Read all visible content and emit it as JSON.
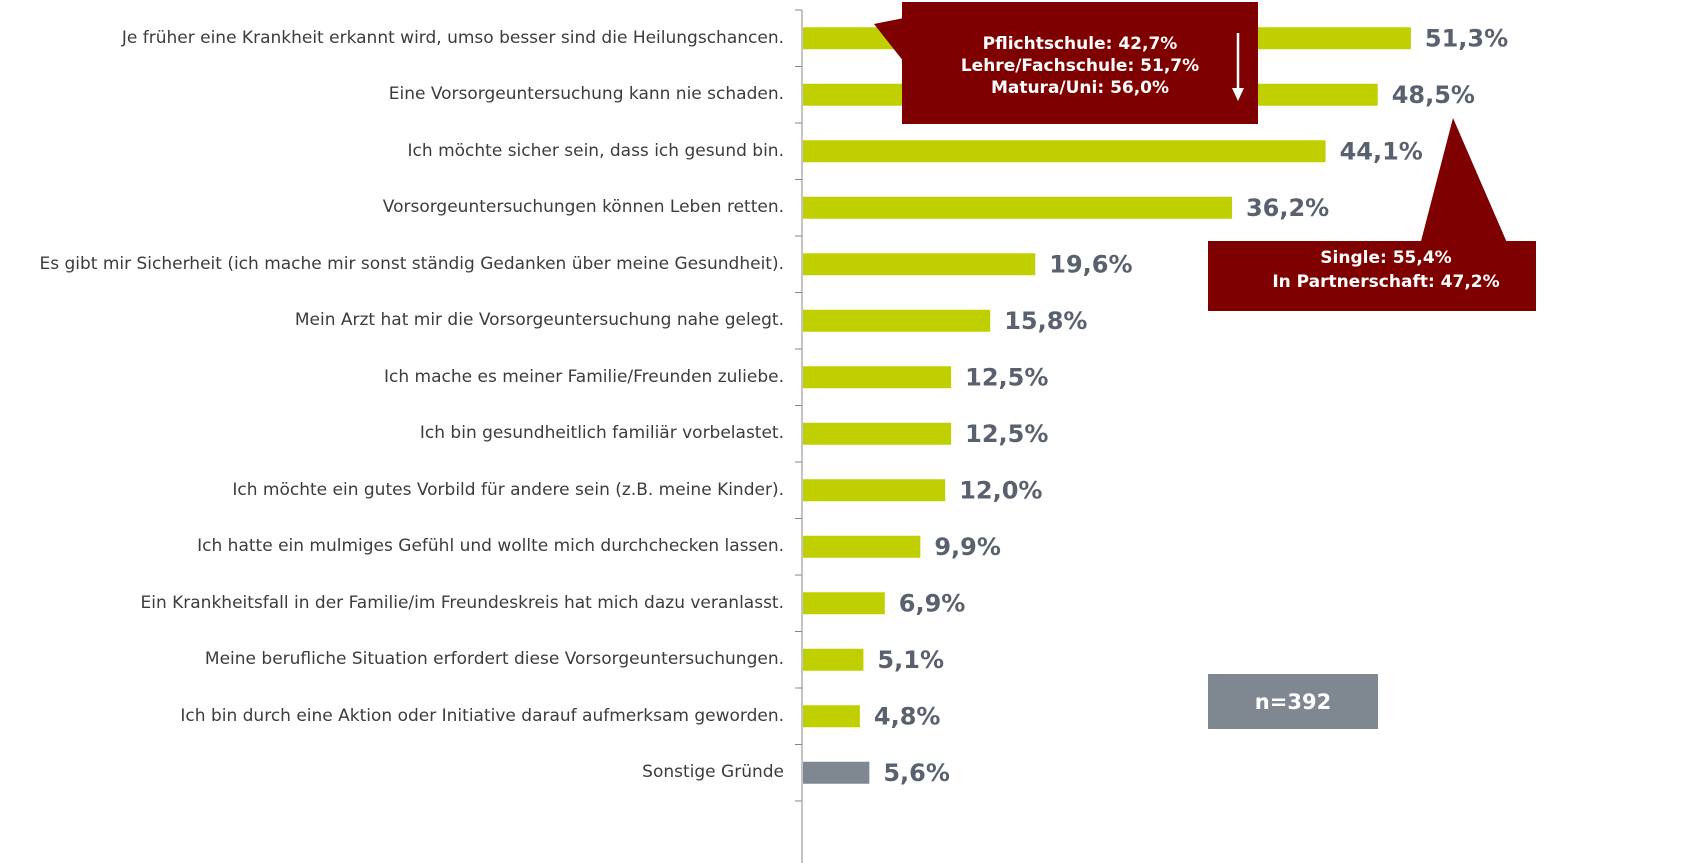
{
  "chart_data": {
    "type": "bar",
    "orientation": "horizontal",
    "categories": [
      "Je früher eine Krankheit erkannt wird, umso besser sind die Heilungschancen.",
      "Eine Vorsorgeuntersuchung kann nie schaden.",
      "Ich möchte sicher sein, dass ich gesund bin.",
      "Vorsorgeuntersuchungen können Leben retten.",
      "Es gibt mir Sicherheit (ich mache mir sonst ständig Gedanken über meine Gesundheit).",
      "Mein Arzt hat mir die Vorsorgeuntersuchung nahe gelegt.",
      "Ich mache es meiner Familie/Freunden zuliebe.",
      "Ich bin gesundheitlich familiär vorbelastet.",
      "Ich möchte ein gutes Vorbild für andere sein (z.B. meine Kinder).",
      "Ich hatte ein mulmiges Gefühl und wollte mich durchchecken lassen.",
      "Ein Krankheitsfall in der Familie/im Freundeskreis hat mich dazu veranlasst.",
      "Meine berufliche Situation erfordert diese Vorsorgeuntersuchungen.",
      "Ich bin durch eine Aktion oder Initiative darauf aufmerksam geworden.",
      "Sonstige Gründe"
    ],
    "values": [
      51.3,
      48.5,
      44.1,
      36.2,
      19.6,
      15.8,
      12.5,
      12.5,
      12.0,
      9.9,
      6.9,
      5.1,
      4.8,
      5.6
    ],
    "value_labels": [
      "51,3%",
      "48,5%",
      "44,1%",
      "36,2%",
      "19,6%",
      "15,8%",
      "12,5%",
      "12,5%",
      "12,0%",
      "9,9%",
      "6,9%",
      "5,1%",
      "4,8%",
      "5,6%"
    ],
    "colors": [
      "#c0cf00",
      "#c0cf00",
      "#c0cf00",
      "#c0cf00",
      "#c0cf00",
      "#c0cf00",
      "#c0cf00",
      "#c0cf00",
      "#c0cf00",
      "#c0cf00",
      "#c0cf00",
      "#c0cf00",
      "#c0cf00",
      "#7f8790"
    ],
    "xlim": [
      0,
      60
    ],
    "annotations": [
      {
        "lines": [
          "Pflichtschule: 42,7%",
          "Lehre/Fachschule: 51,7%",
          "Matura/Uni: 56,0%"
        ]
      },
      {
        "lines": [
          "Single: 55,4%",
          "In Partnerschaft: 47,2%"
        ]
      }
    ],
    "sample_size": "n=392"
  }
}
